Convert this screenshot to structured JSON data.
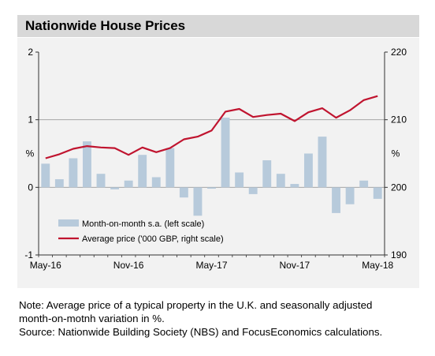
{
  "title": "Nationwide House Prices",
  "note_line1": "Note: Average price of a typical property in the U.K. and seasonally adjusted",
  "note_line2": "month-on-motnh variation in %.",
  "source": "Source: Nationwide Building Society (NBS) and FocusEconomics calculations.",
  "colors": {
    "bar": "#b7cadb",
    "line": "#c0142f",
    "panel": "#f2f2f2",
    "title_bg": "#d8d8d8"
  },
  "chart_data": {
    "type": "bar",
    "categories": [
      "May-16",
      "Jun-16",
      "Jul-16",
      "Aug-16",
      "Sep-16",
      "Oct-16",
      "Nov-16",
      "Dec-16",
      "Jan-17",
      "Feb-17",
      "Mar-17",
      "Apr-17",
      "May-17",
      "Jun-17",
      "Jul-17",
      "Aug-17",
      "Sep-17",
      "Oct-17",
      "Nov-17",
      "Dec-17",
      "Jan-18",
      "Feb-18",
      "Mar-18",
      "Apr-18",
      "May-18"
    ],
    "x_tick_labels": [
      "May-16",
      "Nov-16",
      "May-17",
      "Nov-17",
      "May-18"
    ],
    "left_axis": {
      "unit": "%",
      "ylim": [
        -1,
        2
      ],
      "ticks": [
        "2",
        "1",
        "0",
        "-1"
      ]
    },
    "right_axis": {
      "ylim": [
        190,
        220
      ],
      "ticks": [
        "220",
        "210",
        "200",
        "190"
      ]
    },
    "series": [
      {
        "name": "Month-on-month s.a. (left scale)",
        "type": "bar",
        "axis": "left",
        "values": [
          0.35,
          0.12,
          0.43,
          0.68,
          0.2,
          -0.03,
          0.1,
          0.48,
          0.15,
          0.58,
          -0.15,
          -0.42,
          -0.02,
          1.03,
          0.22,
          -0.1,
          0.4,
          0.2,
          0.05,
          0.5,
          0.75,
          -0.38,
          -0.25,
          0.1,
          -0.17
        ]
      },
      {
        "name": "Average price ('000 GBP, right scale)",
        "type": "line",
        "axis": "right",
        "values": [
          204.3,
          204.9,
          205.7,
          206.1,
          205.9,
          205.8,
          204.8,
          205.9,
          205.2,
          205.8,
          207.1,
          207.5,
          208.4,
          211.2,
          211.6,
          210.4,
          210.7,
          210.9,
          209.8,
          211.1,
          211.7,
          210.3,
          211.4,
          212.9,
          213.5
        ]
      }
    ],
    "legend_position": "bottom-left"
  }
}
